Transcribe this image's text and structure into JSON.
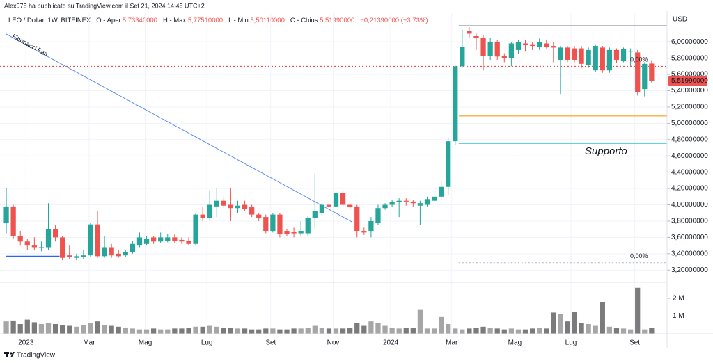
{
  "chart_data": {
    "type": "candlestick",
    "header": "Alex975 ha pubblicato su TradingView.com il Set 21, 2024 14:45 UTC+2",
    "legend": {
      "symbol": "LEO / Dollar, 1W, BITFINEX",
      "open_label": "O - Aper.",
      "open": "5,73340000",
      "high_label": "H - Max.",
      "high": "5,77510000",
      "low_label": "L - Min.",
      "low": "5,50110000",
      "close_label": "C - Chius.",
      "close": "5,51990000",
      "change": "−0,21390000 (−3,73%)"
    },
    "currency": "USD",
    "footer": "TradingView",
    "last_price_label": "5,51990000",
    "up_color": "#26a69a",
    "down_color": "#ef5350",
    "volume_up_color": "#a6a6a6",
    "volume_down_color": "#7b7b7b",
    "open": [
      3.78,
      3.98,
      3.62,
      3.55,
      3.5,
      3.47,
      3.48,
      3.7,
      3.6,
      3.38,
      3.35,
      3.36,
      3.38,
      3.76,
      3.37,
      3.48,
      3.4,
      3.38,
      3.42,
      3.5,
      3.52,
      3.6,
      3.55,
      3.56,
      3.6,
      3.57,
      3.56,
      3.52,
      3.88,
      3.84,
      3.98,
      4.05,
      4.0,
      3.96,
      4.0,
      3.97,
      3.88,
      3.85,
      3.68,
      3.88,
      3.68,
      3.67,
      3.65,
      3.65,
      3.84,
      3.9,
      4.0,
      3.98,
      4.15,
      4.0,
      3.98,
      3.68,
      3.68,
      3.78,
      3.96,
      4.0,
      4.03,
      4.05,
      4.04,
      3.99,
      4.0,
      4.05,
      4.1,
      4.22,
      4.78,
      5.7,
      6.13,
      6.07,
      6.05,
      5.83,
      6.0,
      5.83,
      5.8,
      5.9,
      5.98,
      5.97,
      5.94,
      5.98,
      5.95,
      5.78,
      5.93,
      5.92,
      5.92,
      5.72,
      5.65,
      5.93,
      5.65,
      5.9,
      5.77,
      5.88,
      5.87,
      5.42,
      5.7334
    ],
    "high": [
      4.2,
      4.0,
      3.68,
      3.58,
      3.6,
      3.55,
      4.02,
      3.75,
      3.62,
      3.5,
      3.4,
      3.45,
      3.78,
      3.92,
      3.62,
      3.52,
      3.45,
      3.45,
      3.56,
      3.66,
      3.62,
      3.62,
      3.66,
      3.64,
      3.64,
      3.6,
      3.6,
      3.9,
      3.98,
      4.18,
      4.2,
      4.1,
      4.2,
      4.05,
      4.05,
      4.0,
      3.9,
      3.88,
      3.9,
      3.9,
      3.7,
      3.72,
      3.8,
      3.86,
      4.38,
      4.02,
      4.05,
      4.17,
      4.17,
      4.02,
      4.0,
      3.72,
      3.85,
      4.0,
      4.02,
      4.06,
      4.08,
      4.08,
      4.06,
      4.05,
      4.1,
      4.18,
      4.3,
      4.82,
      5.72,
      6.15,
      6.18,
      6.1,
      6.08,
      6.05,
      6.02,
      5.86,
      6.0,
      6.02,
      6.02,
      6.0,
      6.04,
      6.02,
      6.0,
      5.95,
      5.95,
      5.95,
      5.95,
      5.93,
      5.97,
      5.95,
      5.93,
      5.92,
      5.93,
      5.92,
      5.9,
      5.75,
      5.7751
    ],
    "low": [
      3.65,
      3.58,
      3.5,
      3.45,
      3.44,
      3.43,
      3.45,
      3.55,
      3.32,
      3.33,
      3.32,
      3.33,
      3.36,
      3.35,
      3.35,
      3.35,
      3.35,
      3.36,
      3.4,
      3.48,
      3.5,
      3.52,
      3.53,
      3.54,
      3.53,
      3.52,
      3.5,
      3.5,
      3.8,
      3.82,
      3.85,
      3.96,
      3.8,
      3.9,
      3.92,
      3.85,
      3.8,
      3.65,
      3.66,
      3.6,
      3.62,
      3.6,
      3.62,
      3.62,
      3.7,
      3.86,
      3.93,
      3.96,
      3.98,
      3.94,
      3.6,
      3.63,
      3.6,
      3.75,
      3.94,
      3.97,
      3.85,
      3.99,
      3.98,
      3.75,
      3.98,
      4.03,
      4.06,
      4.12,
      4.73,
      5.68,
      6.05,
      5.9,
      5.65,
      5.78,
      5.78,
      5.75,
      5.7,
      5.85,
      5.88,
      5.9,
      5.9,
      5.92,
      5.75,
      5.36,
      5.75,
      5.75,
      5.68,
      5.68,
      5.63,
      5.62,
      5.62,
      5.74,
      5.75,
      5.7,
      5.34,
      5.33,
      5.5011
    ],
    "close": [
      3.98,
      3.62,
      3.55,
      3.5,
      3.48,
      3.48,
      3.7,
      3.6,
      3.35,
      3.36,
      3.37,
      3.38,
      3.76,
      3.37,
      3.48,
      3.38,
      3.37,
      3.42,
      3.52,
      3.6,
      3.58,
      3.55,
      3.6,
      3.6,
      3.56,
      3.55,
      3.52,
      3.88,
      3.84,
      4.0,
      4.05,
      3.99,
      3.96,
      3.99,
      3.95,
      3.88,
      3.84,
      3.68,
      3.88,
      3.64,
      3.64,
      3.65,
      3.68,
      3.84,
      3.92,
      4.0,
      3.98,
      4.15,
      4.0,
      3.97,
      3.68,
      3.66,
      3.8,
      3.96,
      4.0,
      4.03,
      4.05,
      4.04,
      4.02,
      4.02,
      4.07,
      4.1,
      4.22,
      4.78,
      5.7,
      5.94,
      6.1,
      6.05,
      5.83,
      6.0,
      5.82,
      5.8,
      5.98,
      6.0,
      5.96,
      5.95,
      6.0,
      5.94,
      5.93,
      5.93,
      5.78,
      5.78,
      5.73,
      5.9,
      5.95,
      5.65,
      5.9,
      5.78,
      5.91,
      5.89,
      5.38,
      5.73,
      5.5199
    ],
    "volume": [
      700000,
      750000,
      550000,
      800000,
      650000,
      550000,
      600000,
      550000,
      500000,
      450000,
      400000,
      500000,
      600000,
      700000,
      500000,
      450000,
      400000,
      350000,
      300000,
      250000,
      250000,
      300000,
      250000,
      250000,
      300000,
      300000,
      350000,
      400000,
      400000,
      450000,
      400000,
      350000,
      350000,
      300000,
      300000,
      250000,
      250000,
      300000,
      300000,
      250000,
      250000,
      300000,
      300000,
      350000,
      450000,
      350000,
      300000,
      300000,
      300000,
      350000,
      600000,
      450000,
      700000,
      600000,
      450000,
      350000,
      300000,
      350000,
      350000,
      1350000,
      300000,
      300000,
      950000,
      550000,
      300000,
      250000,
      300000,
      350000,
      400000,
      350000,
      300000,
      250000,
      300000,
      250000,
      250000,
      300000,
      350000,
      300000,
      1200000,
      1100000,
      700000,
      1250000,
      600000,
      550000,
      450000,
      1800000,
      400000,
      350000,
      300000,
      250000,
      2600000,
      250000,
      350000
    ],
    "ylim": [
      3.1,
      6.36
    ],
    "yticks": [
      {
        "value": 3.2,
        "label": "3,20000000"
      },
      {
        "value": 3.4,
        "label": "3,40000000"
      },
      {
        "value": 3.6,
        "label": "3,60000000"
      },
      {
        "value": 3.8,
        "label": "3,80000000"
      },
      {
        "value": 4.0,
        "label": "4,00000000"
      },
      {
        "value": 4.2,
        "label": "4,20000000"
      },
      {
        "value": 4.4,
        "label": "4,40000000"
      },
      {
        "value": 4.6,
        "label": "4,60000000"
      },
      {
        "value": 4.8,
        "label": "4,80000000"
      },
      {
        "value": 5.0,
        "label": "5,00000000"
      },
      {
        "value": 5.2,
        "label": "5,20000000"
      },
      {
        "value": 5.4,
        "label": "5,40000000"
      },
      {
        "value": 5.6,
        "label": "5,60000000"
      },
      {
        "value": 5.8,
        "label": "5,80000000"
      },
      {
        "value": 6.0,
        "label": "6,00000000"
      }
    ],
    "vlim": [
      0,
      3140000
    ],
    "vticks": [
      {
        "value": 1000000,
        "label": "1 M"
      },
      {
        "value": 2000000,
        "label": "2 M"
      }
    ],
    "xlim": [
      -0.9,
      94.2
    ],
    "xticks": [
      {
        "value": 2.8,
        "label": "2023"
      },
      {
        "value": 11.8,
        "label": "Mar"
      },
      {
        "value": 19.8,
        "label": "Mag"
      },
      {
        "value": 28.6,
        "label": "Lug"
      },
      {
        "value": 37.7,
        "label": "Set"
      },
      {
        "value": 46.6,
        "label": "Nov"
      },
      {
        "value": 54.8,
        "label": "2024"
      },
      {
        "value": 63.5,
        "label": "Mar"
      },
      {
        "value": 72.5,
        "label": "Mag"
      },
      {
        "value": 80.5,
        "label": "Lug"
      },
      {
        "value": 89.6,
        "label": "Set"
      }
    ],
    "grid": true,
    "levels": [
      {
        "value": 6.2,
        "color": "#b2b5be",
        "style": "solid",
        "start": 64.5
      },
      {
        "value": 5.7,
        "color": "#e53935",
        "style": "dotted",
        "label": "0,00%"
      },
      {
        "value": 3.29,
        "color": "#b2b5be",
        "style": "dotted",
        "start": 64.5,
        "label": "0,00%"
      },
      {
        "value": 5.09,
        "color": "#f5b041",
        "style": "solid",
        "start": 64.5
      },
      {
        "value": 4.755,
        "color": "#26c6da",
        "style": "solid",
        "start": 64.5,
        "label": "Supporto"
      },
      {
        "value": 3.37,
        "color": "#2962ff",
        "style": "solid",
        "start": -0.1,
        "end": 7.6
      }
    ],
    "fibonacci_fan": {
      "label": "Fibonacci Fan",
      "color": "#5b8def",
      "x": [
        -0.1,
        49.3
      ],
      "y": [
        6.1,
        3.79
      ]
    }
  }
}
